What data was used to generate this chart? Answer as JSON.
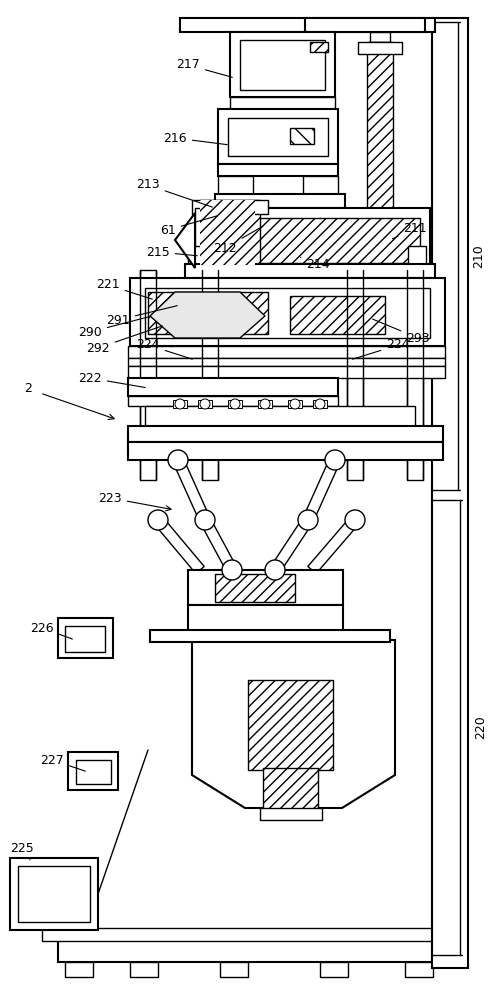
{
  "bg": "#ffffff",
  "lc": "#000000",
  "figsize": [
    4.91,
    10.0
  ],
  "dpi": 100
}
